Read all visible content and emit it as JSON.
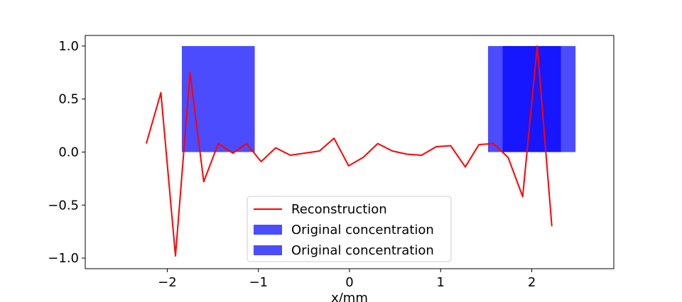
{
  "chart_data": {
    "type": "line",
    "xlabel": "x/mm",
    "ylabel": "",
    "title": "",
    "xlim": [
      -2.9,
      2.9
    ],
    "ylim": [
      -1.1,
      1.1
    ],
    "xticks": [
      -2,
      -1,
      0,
      1,
      2
    ],
    "xtick_labels": [
      "−2",
      "−1",
      "0",
      "1",
      "2"
    ],
    "yticks": [
      1.0,
      0.5,
      0.0,
      -0.5,
      -1.0
    ],
    "ytick_labels": [
      "1.0",
      "0.5",
      "0.0",
      "−0.5",
      "−1.0"
    ],
    "grid": false,
    "legend_position": "lower center",
    "series": [
      {
        "name": "Reconstruction",
        "kind": "line",
        "color": "#ff0000",
        "x": [
          -2.23,
          -2.07,
          -1.91,
          -1.75,
          -1.6,
          -1.44,
          -1.28,
          -1.13,
          -0.97,
          -0.81,
          -0.65,
          -0.49,
          -0.33,
          -0.17,
          -0.01,
          0.15,
          0.31,
          0.47,
          0.63,
          0.79,
          0.95,
          1.11,
          1.27,
          1.42,
          1.58,
          1.74,
          1.9,
          2.06,
          2.22
        ],
        "y": [
          0.08,
          0.56,
          -0.98,
          0.75,
          -0.28,
          0.08,
          -0.01,
          0.08,
          -0.09,
          0.04,
          -0.03,
          -0.01,
          0.01,
          0.13,
          -0.13,
          -0.05,
          0.08,
          0.01,
          -0.02,
          -0.03,
          0.05,
          0.06,
          -0.14,
          0.07,
          0.08,
          -0.05,
          -0.42,
          1.0,
          -0.7
        ]
      },
      {
        "name": "Original concentration",
        "kind": "bar",
        "color": "#0000ff",
        "opacity": 0.7,
        "bars": [
          {
            "x0": -1.84,
            "x1": -1.04,
            "height": 1.0
          },
          {
            "x0": 1.52,
            "x1": 2.32,
            "height": 1.0
          }
        ]
      },
      {
        "name": "Original concentration",
        "kind": "bar",
        "color": "#0000ff",
        "opacity": 0.7,
        "bars": [
          {
            "x0": 1.68,
            "x1": 2.48,
            "height": 1.0
          }
        ]
      }
    ]
  }
}
